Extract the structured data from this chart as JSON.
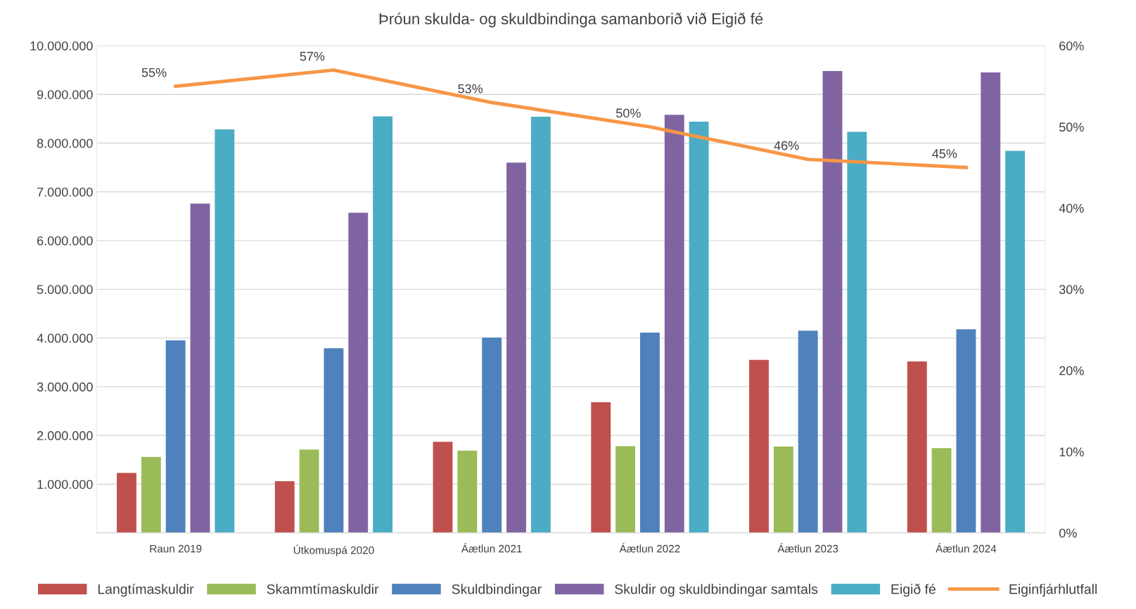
{
  "chart_data": {
    "type": "bar",
    "title": "Þróun skulda- og skuldbindinga samanborið við Eigið fé",
    "categories": [
      "Raun 2019",
      "Útkomuspá 2020",
      "Áætlun 2021",
      "Áætlun 2022",
      "Áætlun 2023",
      "Áætlun 2024"
    ],
    "series": [
      {
        "name": "Langtímaskuldir",
        "color": "#c0504d",
        "values": [
          1230000,
          1060000,
          1870000,
          2680000,
          3550000,
          3520000
        ]
      },
      {
        "name": "Skammtímaskuldir",
        "color": "#9bbb59",
        "values": [
          1560000,
          1710000,
          1690000,
          1780000,
          1770000,
          1740000
        ]
      },
      {
        "name": "Skuldbindingar",
        "color": "#4f81bd",
        "values": [
          3950000,
          3790000,
          4010000,
          4110000,
          4150000,
          4180000
        ]
      },
      {
        "name": "Skuldir og skuldbindingar samtals",
        "color": "#8064a2",
        "values": [
          6760000,
          6570000,
          7600000,
          8580000,
          9480000,
          9450000
        ]
      },
      {
        "name": "Eigið fé",
        "color": "#4bacc6",
        "values": [
          8280000,
          8550000,
          8540000,
          8440000,
          8230000,
          7840000
        ]
      },
      {
        "name": "Eiginfjárhlutfall",
        "color": "#f79646",
        "type": "line",
        "axis": "y2",
        "values": [
          55,
          57,
          53,
          50,
          46,
          45
        ],
        "value_labels": [
          "55%",
          "57%",
          "53%",
          "50%",
          "46%",
          "45%"
        ]
      }
    ],
    "ylim": [
      0,
      10000000
    ],
    "yticks": [
      {
        "value": 0,
        "label": null
      },
      {
        "value": 1000000,
        "label": "1.000.000"
      },
      {
        "value": 2000000,
        "label": "2.000.000"
      },
      {
        "value": 3000000,
        "label": "3.000.000"
      },
      {
        "value": 4000000,
        "label": "4.000.000"
      },
      {
        "value": 5000000,
        "label": "5.000.000"
      },
      {
        "value": 6000000,
        "label": "6.000.000"
      },
      {
        "value": 7000000,
        "label": "7.000.000"
      },
      {
        "value": 8000000,
        "label": "8.000.000"
      },
      {
        "value": 9000000,
        "label": "9.000.000"
      },
      {
        "value": 10000000,
        "label": "10.000.000"
      }
    ],
    "y2lim": [
      0,
      60
    ],
    "y2ticks": [
      {
        "value": 0,
        "label": "0%"
      },
      {
        "value": 10,
        "label": "10%"
      },
      {
        "value": 20,
        "label": "20%"
      },
      {
        "value": 30,
        "label": "30%"
      },
      {
        "value": 40,
        "label": "40%"
      },
      {
        "value": 50,
        "label": "50%"
      },
      {
        "value": 60,
        "label": "60%"
      }
    ],
    "grid": "y",
    "legend": "bottom"
  }
}
